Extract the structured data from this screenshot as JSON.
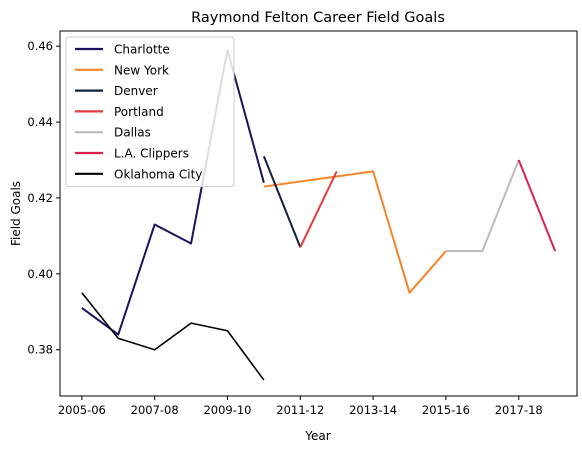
{
  "chart_data": {
    "type": "line",
    "title": "Raymond Felton Career Field Goals",
    "xlabel": "Year",
    "ylabel": "Field Goals",
    "xlim": [
      2004.4,
      2018.6
    ],
    "ylim": [
      0.3678,
      0.464
    ],
    "grid": false,
    "legend_position": "top-left",
    "x_ticks": [
      2005,
      2007,
      2009,
      2011,
      2013,
      2015,
      2017
    ],
    "x_tick_labels": [
      "2005-06",
      "2007-08",
      "2009-10",
      "2011-12",
      "2013-14",
      "2015-16",
      "2017-18"
    ],
    "y_ticks": [
      0.38,
      0.4,
      0.42,
      0.44,
      0.46
    ],
    "y_tick_labels": [
      "0.38",
      "0.40",
      "0.42",
      "0.44",
      "0.46"
    ],
    "series": [
      {
        "name": "Charlotte",
        "color": "#1d1160",
        "x": [
          2005,
          2006,
          2007,
          2008,
          2009,
          2010
        ],
        "y": [
          0.391,
          0.384,
          0.413,
          0.408,
          0.459,
          0.424
        ]
      },
      {
        "name": "New York",
        "color": "#f58426",
        "x": [
          2010,
          2013,
          2014,
          2015
        ],
        "y": [
          0.423,
          0.427,
          0.395,
          0.406
        ]
      },
      {
        "name": "Denver",
        "color": "#0e2240",
        "x": [
          2010,
          2011
        ],
        "y": [
          0.431,
          0.407
        ]
      },
      {
        "name": "Portland",
        "color": "#e03a3e",
        "x": [
          2011,
          2012
        ],
        "y": [
          0.407,
          0.427
        ]
      },
      {
        "name": "Dallas",
        "color": "#bbbbbb",
        "x": [
          2015,
          2016,
          2017
        ],
        "y": [
          0.406,
          0.406,
          0.43
        ]
      },
      {
        "name": "L.A. Clippers",
        "color": "#df1f4f",
        "x": [
          2017,
          2018
        ],
        "y": [
          0.43,
          0.406
        ]
      },
      {
        "name": " Oklahoma City",
        "color": "#000000",
        "x": [
          2005,
          2006,
          2007,
          2008,
          2009,
          2010
        ],
        "y": [
          0.395,
          0.383,
          0.38,
          0.387,
          0.385,
          0.372
        ]
      }
    ]
  }
}
